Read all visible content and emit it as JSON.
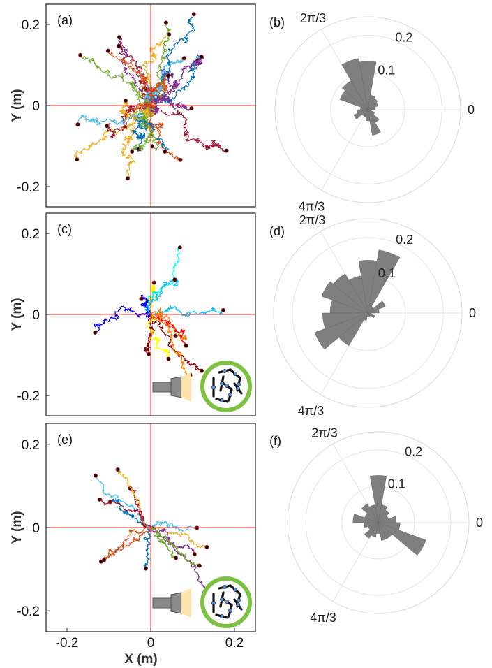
{
  "chart_data": [
    {
      "type": "scatter",
      "panel_label": "(a)",
      "description": "trajectories",
      "xlim": [
        -0.25,
        0.25
      ],
      "ylim": [
        -0.25,
        0.25
      ],
      "yticks": [
        {
          "v": 0.2,
          "t": "0.2"
        },
        {
          "v": 0,
          "t": "0"
        },
        {
          "v": -0.2,
          "t": "-0.2"
        }
      ],
      "xticks": [],
      "ylabel": "Y (m)",
      "xlabel": "",
      "crosshair": true,
      "colors": [
        "#0072BD",
        "#D95319",
        "#EDB120",
        "#7E2F8E",
        "#77AC30",
        "#4DBEEE",
        "#A2142F"
      ],
      "n_traj": 26,
      "spread": 0.085,
      "seed": 11,
      "inset": false
    },
    {
      "type": "scatter",
      "panel_label": "(c)",
      "xlim": [
        -0.25,
        0.25
      ],
      "ylim": [
        -0.25,
        0.25
      ],
      "yticks": [
        {
          "v": 0.2,
          "t": "0.2"
        },
        {
          "v": 0,
          "t": "0"
        },
        {
          "v": -0.2,
          "t": "-0.2"
        }
      ],
      "xticks": [],
      "ylabel": "Y (m)",
      "xlabel": "",
      "crosshair": true,
      "colors": [
        "#0000ff",
        "#00bfff",
        "#ffff00",
        "#ff8000",
        "#ff0000",
        "#800000",
        "#00ffff",
        "#8b0000"
      ],
      "n_traj": 12,
      "spread": 0.06,
      "seed": 23,
      "inset": true
    },
    {
      "type": "scatter",
      "panel_label": "(e)",
      "xlim": [
        -0.25,
        0.25
      ],
      "ylim": [
        -0.25,
        0.25
      ],
      "yticks": [
        {
          "v": 0.2,
          "t": "0.2"
        },
        {
          "v": 0,
          "t": "0"
        },
        {
          "v": -0.2,
          "t": "-0.2"
        }
      ],
      "xticks": [
        {
          "v": -0.2,
          "t": "-0.2"
        },
        {
          "v": 0,
          "t": "0"
        },
        {
          "v": 0.2,
          "t": "0.2"
        }
      ],
      "ylabel": "Y (m)",
      "xlabel": "X (m)",
      "crosshair": true,
      "colors": [
        "#0072BD",
        "#D95319",
        "#EDB120",
        "#7E2F8E",
        "#77AC30",
        "#4DBEEE",
        "#A2142F"
      ],
      "n_traj": 14,
      "spread": 0.045,
      "seed": 37,
      "inset": true
    },
    {
      "type": "polar-histogram",
      "panel_label": "(b)",
      "bin_width_deg": 20,
      "rlim": [
        0,
        0.25
      ],
      "rticks": [
        {
          "v": 0.1,
          "t": "0.1"
        },
        {
          "v": 0.2,
          "t": "0.2"
        }
      ],
      "angle_labels": {
        "zero": "0",
        "two_pi_three": "2π/3",
        "four_pi_three": "4π/3"
      },
      "bins": [
        {
          "center_deg": 10,
          "value": 0.02
        },
        {
          "center_deg": 30,
          "value": 0.03
        },
        {
          "center_deg": 50,
          "value": 0.035
        },
        {
          "center_deg": 70,
          "value": 0.04
        },
        {
          "center_deg": 90,
          "value": 0.13
        },
        {
          "center_deg": 110,
          "value": 0.14
        },
        {
          "center_deg": 130,
          "value": 0.09
        },
        {
          "center_deg": 150,
          "value": 0.08
        },
        {
          "center_deg": 170,
          "value": 0.02
        },
        {
          "center_deg": 190,
          "value": 0.03
        },
        {
          "center_deg": 210,
          "value": 0.04
        },
        {
          "center_deg": 230,
          "value": 0.02
        },
        {
          "center_deg": 250,
          "value": 0.02
        },
        {
          "center_deg": 270,
          "value": 0.03
        },
        {
          "center_deg": 290,
          "value": 0.07
        },
        {
          "center_deg": 310,
          "value": 0.04
        },
        {
          "center_deg": 330,
          "value": 0.02
        },
        {
          "center_deg": 350,
          "value": 0.01
        }
      ]
    },
    {
      "type": "polar-histogram",
      "panel_label": "(d)",
      "bin_width_deg": 20,
      "rlim": [
        0,
        0.25
      ],
      "rticks": [
        {
          "v": 0.1,
          "t": "0.1"
        },
        {
          "v": 0.2,
          "t": "0.2"
        }
      ],
      "angle_labels": {
        "zero": "0",
        "two_pi_three": "2π/3",
        "four_pi_three": "4π/3"
      },
      "bins": [
        {
          "center_deg": 10,
          "value": 0.03
        },
        {
          "center_deg": 30,
          "value": 0.05
        },
        {
          "center_deg": 50,
          "value": 0.02
        },
        {
          "center_deg": 70,
          "value": 0.17
        },
        {
          "center_deg": 90,
          "value": 0.14
        },
        {
          "center_deg": 110,
          "value": 0.1
        },
        {
          "center_deg": 130,
          "value": 0.12
        },
        {
          "center_deg": 150,
          "value": 0.13
        },
        {
          "center_deg": 170,
          "value": 0.1
        },
        {
          "center_deg": 190,
          "value": 0.12
        },
        {
          "center_deg": 210,
          "value": 0.15
        },
        {
          "center_deg": 230,
          "value": 0.1
        },
        {
          "center_deg": 250,
          "value": 0.02
        },
        {
          "center_deg": 270,
          "value": 0.01
        },
        {
          "center_deg": 290,
          "value": 0.01
        },
        {
          "center_deg": 310,
          "value": 0.01
        },
        {
          "center_deg": 330,
          "value": 0.02
        },
        {
          "center_deg": 350,
          "value": 0.01
        }
      ]
    },
    {
      "type": "polar-histogram",
      "panel_label": "(f)",
      "bin_width_deg": 20,
      "rlim": [
        0,
        0.25
      ],
      "rticks": [
        {
          "v": 0.1,
          "t": "0.1"
        },
        {
          "v": 0.2,
          "t": "0.2"
        }
      ],
      "angle_labels": {
        "zero": "0",
        "two_pi_three": "2π/3",
        "four_pi_three": "4π/3"
      },
      "bins": [
        {
          "center_deg": 10,
          "value": 0.05
        },
        {
          "center_deg": 30,
          "value": 0.03
        },
        {
          "center_deg": 50,
          "value": 0.04
        },
        {
          "center_deg": 70,
          "value": 0.05
        },
        {
          "center_deg": 90,
          "value": 0.13
        },
        {
          "center_deg": 110,
          "value": 0.05
        },
        {
          "center_deg": 130,
          "value": 0.06
        },
        {
          "center_deg": 150,
          "value": 0.04
        },
        {
          "center_deg": 170,
          "value": 0.07
        },
        {
          "center_deg": 190,
          "value": 0.04
        },
        {
          "center_deg": 210,
          "value": 0.03
        },
        {
          "center_deg": 230,
          "value": 0.05
        },
        {
          "center_deg": 250,
          "value": 0.04
        },
        {
          "center_deg": 270,
          "value": 0.03
        },
        {
          "center_deg": 290,
          "value": 0.05
        },
        {
          "center_deg": 310,
          "value": 0.05
        },
        {
          "center_deg": 330,
          "value": 0.14
        },
        {
          "center_deg": 350,
          "value": 0.06
        }
      ]
    }
  ]
}
